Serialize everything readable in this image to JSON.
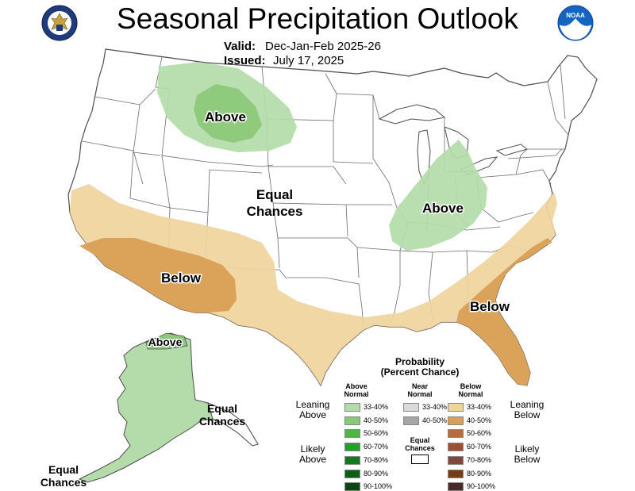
{
  "header": {
    "title": "Seasonal Precipitation Outlook",
    "valid_label": "Valid:",
    "valid_value": "Dec-Jan-Feb 2025-26",
    "issued_label": "Issued:",
    "issued_value": "July 17, 2025"
  },
  "logos": {
    "left": "doc-seal-icon",
    "right": "noaa-logo-icon",
    "noaa_text": "NOAA"
  },
  "map_labels": {
    "above_north": "Above",
    "above_ohio": "Above",
    "above_alaska": "Above",
    "below_southwest": "Below",
    "below_southeast": "Below",
    "equal_center_1": "Equal",
    "equal_center_2": "Chances",
    "equal_ak_1": "Equal",
    "equal_ak_2": "Chances",
    "equal_sw_1": "Equal",
    "equal_sw_2": "Chances"
  },
  "colors": {
    "above_33_40": "#b3dcaa",
    "above_40_50": "#8cc87a",
    "below_33_40": "#f0d49c",
    "below_40_50": "#d9a056",
    "near_33_40": "#d9d9d9",
    "near_40_50": "#a6a6a6"
  },
  "legend": {
    "title_1": "Probability",
    "title_2": "(Percent Chance)",
    "above_head_1": "Above",
    "above_head_2": "Normal",
    "near_head_1": "Near",
    "near_head_2": "Normal",
    "below_head_1": "Below",
    "below_head_2": "Normal",
    "leaning_above_1": "Leaning",
    "leaning_above_2": "Above",
    "likely_above_1": "Likely",
    "likely_above_2": "Above",
    "leaning_below_1": "Leaning",
    "leaning_below_2": "Below",
    "likely_below_1": "Likely",
    "likely_below_2": "Below",
    "equal_1": "Equal",
    "equal_2": "Chances",
    "above_items": [
      {
        "label": "33-40%",
        "color": "#b3dcaa"
      },
      {
        "label": "40-50%",
        "color": "#8cc87a"
      },
      {
        "label": "50-60%",
        "color": "#4db843"
      },
      {
        "label": "60-70%",
        "color": "#23a02c"
      },
      {
        "label": "70-80%",
        "color": "#127a1f"
      },
      {
        "label": "80-90%",
        "color": "#0d5e18"
      },
      {
        "label": "90-100%",
        "color": "#0a4512"
      }
    ],
    "near_items": [
      {
        "label": "33-40%",
        "color": "#d9d9d9"
      },
      {
        "label": "40-50%",
        "color": "#a6a6a6"
      }
    ],
    "below_items": [
      {
        "label": "33-40%",
        "color": "#f0d49c"
      },
      {
        "label": "40-50%",
        "color": "#d9a056"
      },
      {
        "label": "50-60%",
        "color": "#b86c3a"
      },
      {
        "label": "60-70%",
        "color": "#9c5232"
      },
      {
        "label": "70-80%",
        "color": "#85473a"
      },
      {
        "label": "80-90%",
        "color": "#7a3c10"
      },
      {
        "label": "90-100%",
        "color": "#4a2a26"
      }
    ]
  }
}
